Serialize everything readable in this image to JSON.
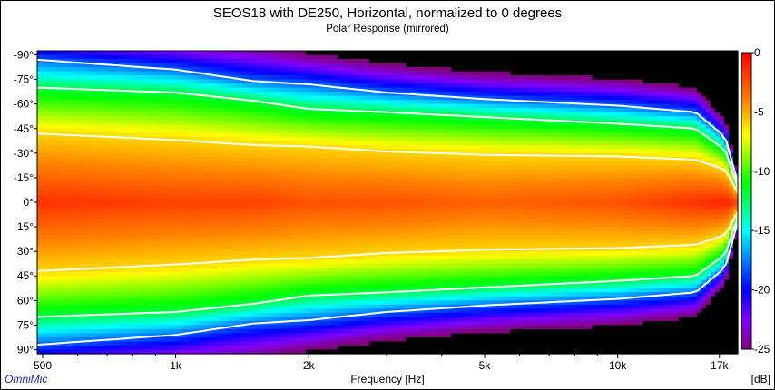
{
  "chart_data": {
    "type": "heatmap",
    "title": "SEOS18 with DE250, Horizontal, normalized to 0 degrees",
    "subtitle": "Polar Response (mirrored)",
    "xlabel": "Frequency [Hz]",
    "ylabel": "",
    "colorbar_label": "[dB]",
    "watermark": "OmniMic",
    "x_scale": "log",
    "xlim": [
      486,
      18700
    ],
    "ylim": [
      -92.5,
      92.5
    ],
    "clim": [
      -25,
      0
    ],
    "x_ticks": [
      {
        "v": 500,
        "label": "500"
      },
      {
        "v": 1000,
        "label": "1k"
      },
      {
        "v": 2000,
        "label": "2k"
      },
      {
        "v": 5000,
        "label": "5k"
      },
      {
        "v": 10000,
        "label": "10k"
      },
      {
        "v": 17000,
        "label": "17k"
      }
    ],
    "x_minor_ticks": [
      600,
      700,
      800,
      900,
      3000,
      4000,
      6000,
      7000,
      8000,
      9000
    ],
    "y_ticks": [
      {
        "v": -90,
        "label": "-90°"
      },
      {
        "v": -75,
        "label": "-75°"
      },
      {
        "v": -60,
        "label": "-60°"
      },
      {
        "v": -45,
        "label": "-45°"
      },
      {
        "v": -30,
        "label": "-30°"
      },
      {
        "v": -15,
        "label": "-15°"
      },
      {
        "v": 0,
        "label": "0°"
      },
      {
        "v": 15,
        "label": "15°"
      },
      {
        "v": 30,
        "label": "30°"
      },
      {
        "v": 45,
        "label": "45°"
      },
      {
        "v": 60,
        "label": "60°"
      },
      {
        "v": 75,
        "label": "75°"
      },
      {
        "v": 90,
        "label": "90°"
      }
    ],
    "colorbar_ticks": [
      {
        "v": 0,
        "label": "0"
      },
      {
        "v": -5,
        "label": "-5"
      },
      {
        "v": -10,
        "label": "-10"
      },
      {
        "v": -15,
        "label": "-15"
      },
      {
        "v": -20,
        "label": "-20"
      },
      {
        "v": -25,
        "label": "-25"
      }
    ],
    "colormap": [
      {
        "db": 0,
        "color": "#ff0000"
      },
      {
        "db": -4,
        "color": "#ff8000"
      },
      {
        "db": -7,
        "color": "#ffff00"
      },
      {
        "db": -11,
        "color": "#00ff00"
      },
      {
        "db": -15,
        "color": "#00ffff"
      },
      {
        "db": -20,
        "color": "#0000ff"
      },
      {
        "db": -22.5,
        "color": "#8000ff"
      },
      {
        "db": -25,
        "color": "#800080"
      }
    ],
    "below_range_color": "#000000",
    "contour_levels_db": [
      -6,
      -12,
      -18
    ],
    "contour_color": "#ffffff",
    "angle_at_level": {
      "levels_db": [
        -6,
        -12,
        -18,
        -24
      ],
      "rows": [
        {
          "freq": 486,
          "center_db": -1.5,
          "angles": [
            42,
            70,
            87,
            100
          ]
        },
        {
          "freq": 1000,
          "center_db": -2,
          "angles": [
            38,
            67,
            81,
            96
          ]
        },
        {
          "freq": 1500,
          "center_db": -2,
          "angles": [
            35,
            62,
            74,
            92
          ]
        },
        {
          "freq": 2000,
          "center_db": -2.5,
          "angles": [
            34,
            57,
            72,
            87
          ]
        },
        {
          "freq": 3000,
          "center_db": -2.5,
          "angles": [
            31,
            55,
            67,
            81
          ]
        },
        {
          "freq": 5000,
          "center_db": -3,
          "angles": [
            29,
            52,
            63,
            76
          ]
        },
        {
          "freq": 10000,
          "center_db": -2.5,
          "angles": [
            28,
            48,
            59,
            72
          ]
        },
        {
          "freq": 15000,
          "center_db": -1.5,
          "angles": [
            26,
            45,
            55,
            67
          ]
        },
        {
          "freq": 17500,
          "center_db": -1,
          "angles": [
            20,
            32,
            40,
            48
          ]
        },
        {
          "freq": 18700,
          "center_db": -2,
          "angles": [
            6,
            9,
            12,
            15
          ]
        }
      ]
    }
  }
}
